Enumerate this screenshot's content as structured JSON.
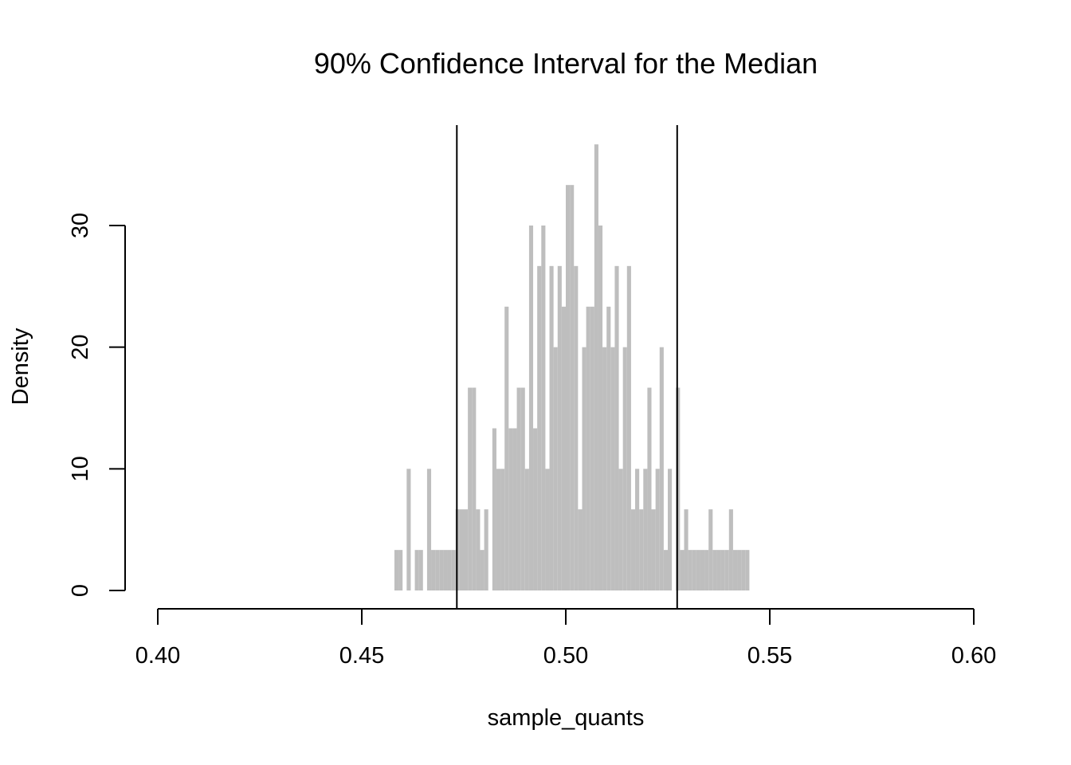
{
  "chart_data": {
    "type": "bar",
    "title": "90% Confidence Interval for the Median",
    "xlabel": "sample_quants",
    "ylabel": "Density",
    "xlim": [
      0.4,
      0.6
    ],
    "ylim": [
      0,
      30
    ],
    "x_ticks": [
      "0.40",
      "0.45",
      "0.50",
      "0.55",
      "0.60"
    ],
    "y_ticks": [
      "0",
      "10",
      "20",
      "30"
    ],
    "bin_width": 0.001,
    "bins": [
      {
        "start": 0.458,
        "density": 3.33
      },
      {
        "start": 0.459,
        "density": 3.33
      },
      {
        "start": 0.461,
        "density": 10.0
      },
      {
        "start": 0.463,
        "density": 3.33
      },
      {
        "start": 0.464,
        "density": 3.33
      },
      {
        "start": 0.466,
        "density": 10.0
      },
      {
        "start": 0.467,
        "density": 3.33
      },
      {
        "start": 0.468,
        "density": 3.33
      },
      {
        "start": 0.469,
        "density": 3.33
      },
      {
        "start": 0.47,
        "density": 3.33
      },
      {
        "start": 0.471,
        "density": 3.33
      },
      {
        "start": 0.472,
        "density": 3.33
      },
      {
        "start": 0.473,
        "density": 6.67
      },
      {
        "start": 0.474,
        "density": 6.67
      },
      {
        "start": 0.475,
        "density": 6.67
      },
      {
        "start": 0.476,
        "density": 16.67
      },
      {
        "start": 0.477,
        "density": 16.67
      },
      {
        "start": 0.478,
        "density": 6.67
      },
      {
        "start": 0.479,
        "density": 3.33
      },
      {
        "start": 0.48,
        "density": 6.67
      },
      {
        "start": 0.481,
        "density": 0.0
      },
      {
        "start": 0.482,
        "density": 13.33
      },
      {
        "start": 0.483,
        "density": 10.0
      },
      {
        "start": 0.484,
        "density": 10.0
      },
      {
        "start": 0.485,
        "density": 23.33
      },
      {
        "start": 0.486,
        "density": 13.33
      },
      {
        "start": 0.487,
        "density": 13.33
      },
      {
        "start": 0.488,
        "density": 16.67
      },
      {
        "start": 0.489,
        "density": 16.67
      },
      {
        "start": 0.49,
        "density": 10.0
      },
      {
        "start": 0.491,
        "density": 30.0
      },
      {
        "start": 0.492,
        "density": 13.33
      },
      {
        "start": 0.493,
        "density": 26.67
      },
      {
        "start": 0.494,
        "density": 30.0
      },
      {
        "start": 0.495,
        "density": 10.0
      },
      {
        "start": 0.496,
        "density": 26.67
      },
      {
        "start": 0.497,
        "density": 20.0
      },
      {
        "start": 0.498,
        "density": 26.67
      },
      {
        "start": 0.499,
        "density": 23.33
      },
      {
        "start": 0.5,
        "density": 33.33
      },
      {
        "start": 0.501,
        "density": 33.33
      },
      {
        "start": 0.502,
        "density": 26.67
      },
      {
        "start": 0.503,
        "density": 6.67
      },
      {
        "start": 0.504,
        "density": 20.0
      },
      {
        "start": 0.505,
        "density": 23.33
      },
      {
        "start": 0.506,
        "density": 23.33
      },
      {
        "start": 0.507,
        "density": 36.67
      },
      {
        "start": 0.508,
        "density": 30.0
      },
      {
        "start": 0.509,
        "density": 20.0
      },
      {
        "start": 0.51,
        "density": 23.33
      },
      {
        "start": 0.511,
        "density": 20.0
      },
      {
        "start": 0.512,
        "density": 26.67
      },
      {
        "start": 0.513,
        "density": 10.0
      },
      {
        "start": 0.514,
        "density": 20.0
      },
      {
        "start": 0.515,
        "density": 26.67
      },
      {
        "start": 0.516,
        "density": 6.67
      },
      {
        "start": 0.517,
        "density": 10.0
      },
      {
        "start": 0.518,
        "density": 6.67
      },
      {
        "start": 0.519,
        "density": 10.0
      },
      {
        "start": 0.52,
        "density": 16.67
      },
      {
        "start": 0.521,
        "density": 6.67
      },
      {
        "start": 0.522,
        "density": 10.0
      },
      {
        "start": 0.523,
        "density": 20.0
      },
      {
        "start": 0.524,
        "density": 3.33
      },
      {
        "start": 0.525,
        "density": 10.0
      },
      {
        "start": 0.527,
        "density": 16.67
      },
      {
        "start": 0.528,
        "density": 3.33
      },
      {
        "start": 0.529,
        "density": 6.67
      },
      {
        "start": 0.53,
        "density": 3.33
      },
      {
        "start": 0.531,
        "density": 3.33
      },
      {
        "start": 0.532,
        "density": 3.33
      },
      {
        "start": 0.533,
        "density": 3.33
      },
      {
        "start": 0.534,
        "density": 3.33
      },
      {
        "start": 0.535,
        "density": 6.67
      },
      {
        "start": 0.536,
        "density": 3.33
      },
      {
        "start": 0.537,
        "density": 3.33
      },
      {
        "start": 0.538,
        "density": 3.33
      },
      {
        "start": 0.539,
        "density": 3.33
      },
      {
        "start": 0.54,
        "density": 6.67
      },
      {
        "start": 0.541,
        "density": 3.33
      },
      {
        "start": 0.542,
        "density": 3.33
      },
      {
        "start": 0.543,
        "density": 3.33
      },
      {
        "start": 0.544,
        "density": 3.33
      }
    ],
    "vlines": [
      0.4733,
      0.5273
    ],
    "bar_color": "#bebebe",
    "line_color": "#000000",
    "grid": false,
    "legend": "none"
  }
}
